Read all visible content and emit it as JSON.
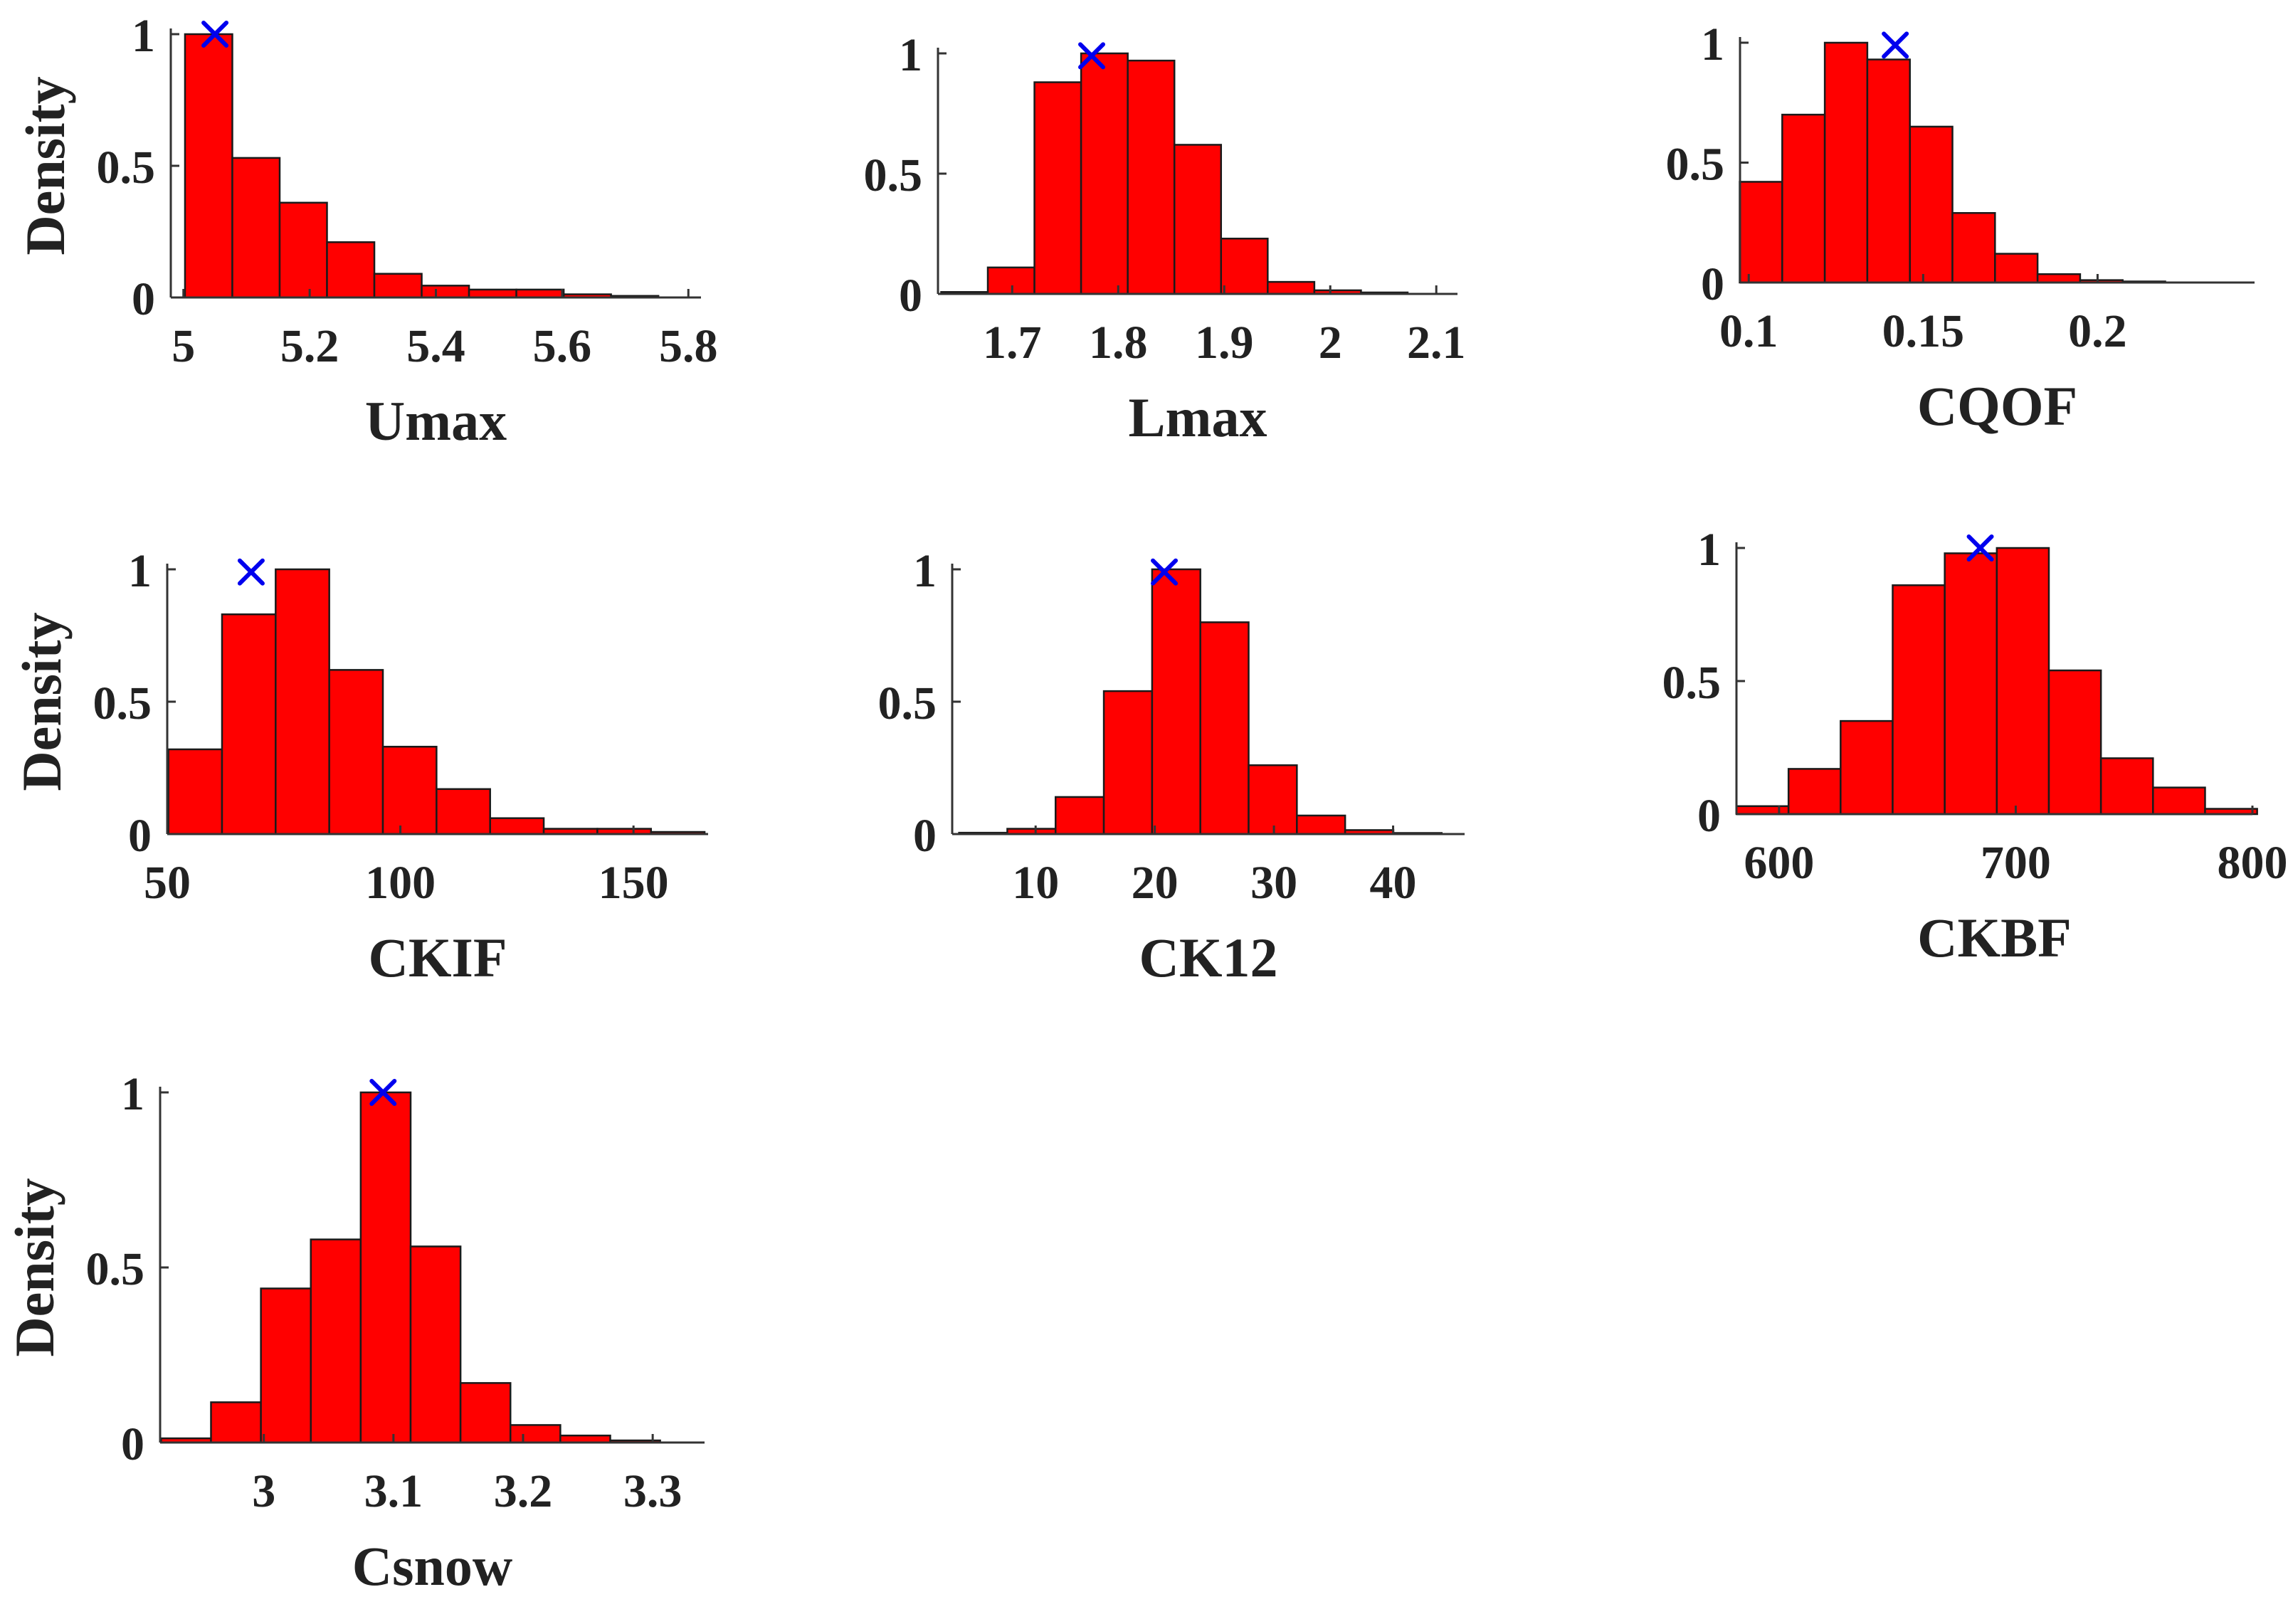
{
  "colors": {
    "bar_fill": "#ff0000",
    "bar_edge": "#1a1a1a",
    "marker": "#0000ee",
    "axis": "#333333",
    "text": "#222222"
  },
  "chart_data": [
    {
      "id": "umax",
      "type": "bar",
      "xlabel": "Umax",
      "ylabel": "Density",
      "xlim": [
        4.98,
        5.82
      ],
      "ylim": [
        0,
        1
      ],
      "xticks": [
        5,
        5.2,
        5.4,
        5.6,
        5.8
      ],
      "xtick_labels": [
        "5",
        "5.2",
        "5.4",
        "5.6",
        "5.8"
      ],
      "yticks": [
        0,
        0.5,
        1
      ],
      "ytick_labels": [
        "0",
        "0.5",
        "1"
      ],
      "bin_width": 0.075,
      "bins": [
        5.04,
        5.115,
        5.19,
        5.265,
        5.34,
        5.415,
        5.49,
        5.565,
        5.64,
        5.715
      ],
      "values": [
        1.0,
        0.53,
        0.36,
        0.21,
        0.09,
        0.045,
        0.03,
        0.03,
        0.012,
        0.006
      ],
      "marker": {
        "x": 5.05,
        "y": 1.0
      }
    },
    {
      "id": "lmax",
      "type": "bar",
      "xlabel": "Lmax",
      "ylabel": "",
      "xlim": [
        1.63,
        2.12
      ],
      "ylim": [
        0,
        1
      ],
      "xticks": [
        1.7,
        1.8,
        1.9,
        2,
        2.1
      ],
      "xtick_labels": [
        "1.7",
        "1.8",
        "1.9",
        "2",
        "2.1"
      ],
      "yticks": [
        0,
        0.5,
        1
      ],
      "ytick_labels": [
        "0",
        "0.5",
        "1"
      ],
      "bin_width": 0.044,
      "bins": [
        1.655,
        1.699,
        1.743,
        1.787,
        1.831,
        1.875,
        1.919,
        1.963,
        2.007,
        2.051
      ],
      "values": [
        0.008,
        0.11,
        0.88,
        1.0,
        0.97,
        0.62,
        0.23,
        0.05,
        0.015,
        0.006
      ],
      "marker": {
        "x": 1.775,
        "y": 0.99
      }
    },
    {
      "id": "cqof",
      "type": "bar",
      "xlabel": "CQOF",
      "ylabel": "",
      "xlim": [
        0.0975,
        0.245
      ],
      "ylim": [
        0,
        1
      ],
      "xticks": [
        0.1,
        0.15,
        0.2
      ],
      "xtick_labels": [
        "0.1",
        "0.15",
        "0.2"
      ],
      "yticks": [
        0,
        0.5,
        1
      ],
      "ytick_labels": [
        "0",
        "0.5",
        "1"
      ],
      "bin_width": 0.0122,
      "bins": [
        0.1035,
        0.1157,
        0.1279,
        0.1401,
        0.1523,
        0.1645,
        0.1767,
        0.1889,
        0.2011,
        0.2133,
        0.2255
      ],
      "values": [
        0.42,
        0.7,
        1.0,
        0.93,
        0.65,
        0.29,
        0.12,
        0.035,
        0.01,
        0.004,
        0.0
      ],
      "marker": {
        "x": 0.142,
        "y": 0.99
      }
    },
    {
      "id": "ckif",
      "type": "bar",
      "xlabel": "CKIF",
      "ylabel": "Density",
      "xlim": [
        50,
        166
      ],
      "ylim": [
        0,
        1
      ],
      "xticks": [
        50,
        100,
        150
      ],
      "xtick_labels": [
        "50",
        "100",
        "150"
      ],
      "yticks": [
        0,
        0.5,
        1
      ],
      "ytick_labels": [
        "0",
        "0.5",
        "1"
      ],
      "bin_width": 11.5,
      "bins": [
        56,
        67.5,
        79,
        90.5,
        102,
        113.5,
        125,
        136.5,
        148,
        159.5
      ],
      "values": [
        0.32,
        0.83,
        1.0,
        0.62,
        0.33,
        0.17,
        0.06,
        0.02,
        0.02,
        0.008
      ],
      "marker": {
        "x": 68,
        "y": 0.99
      }
    },
    {
      "id": "ck12",
      "type": "bar",
      "xlabel": "CK12",
      "ylabel": "",
      "xlim": [
        3,
        46
      ],
      "ylim": [
        0,
        1
      ],
      "xticks": [
        10,
        20,
        30,
        40
      ],
      "xtick_labels": [
        "10",
        "20",
        "30",
        "40"
      ],
      "yticks": [
        0,
        0.5,
        1
      ],
      "ytick_labels": [
        "0",
        "0.5",
        "1"
      ],
      "bin_width": 4.05,
      "bins": [
        5.6,
        9.65,
        13.7,
        17.75,
        21.8,
        25.85,
        29.9,
        33.95,
        38.0,
        42.05
      ],
      "values": [
        0.005,
        0.02,
        0.14,
        0.54,
        1.0,
        0.8,
        0.26,
        0.07,
        0.015,
        0.004
      ],
      "marker": {
        "x": 20.8,
        "y": 0.99
      }
    },
    {
      "id": "ckbf",
      "type": "bar",
      "xlabel": "CKBF",
      "ylabel": "",
      "xlim": [
        582,
        800
      ],
      "ylim": [
        0,
        1
      ],
      "xticks": [
        600,
        700,
        800
      ],
      "xtick_labels": [
        "600",
        "700",
        "800"
      ],
      "yticks": [
        0,
        0.5,
        1
      ],
      "ytick_labels": [
        "0",
        "0.5",
        "1"
      ],
      "bin_width": 22,
      "bins": [
        593,
        615,
        637,
        659,
        681,
        703,
        725,
        747,
        769,
        791
      ],
      "values": [
        0.03,
        0.17,
        0.35,
        0.86,
        0.98,
        1.0,
        0.54,
        0.21,
        0.1,
        0.02
      ],
      "marker": {
        "x": 685,
        "y": 1.0
      }
    },
    {
      "id": "csnow",
      "type": "bar",
      "xlabel": "Csnow",
      "ylabel": "Density",
      "xlim": [
        2.92,
        3.34
      ],
      "ylim": [
        0,
        1
      ],
      "xticks": [
        3,
        3.1,
        3.2,
        3.3
      ],
      "xtick_labels": [
        "3",
        "3.1",
        "3.2",
        "3.3"
      ],
      "yticks": [
        0,
        0.5,
        1
      ],
      "ytick_labels": [
        "0",
        "0.5",
        "1"
      ],
      "bin_width": 0.0385,
      "bins": [
        2.94,
        2.9785,
        3.017,
        3.0555,
        3.094,
        3.1325,
        3.171,
        3.2095,
        3.248,
        3.2865
      ],
      "values": [
        0.012,
        0.115,
        0.44,
        0.58,
        1.0,
        0.56,
        0.17,
        0.05,
        0.02,
        0.006
      ],
      "marker": {
        "x": 3.092,
        "y": 1.0
      }
    }
  ]
}
